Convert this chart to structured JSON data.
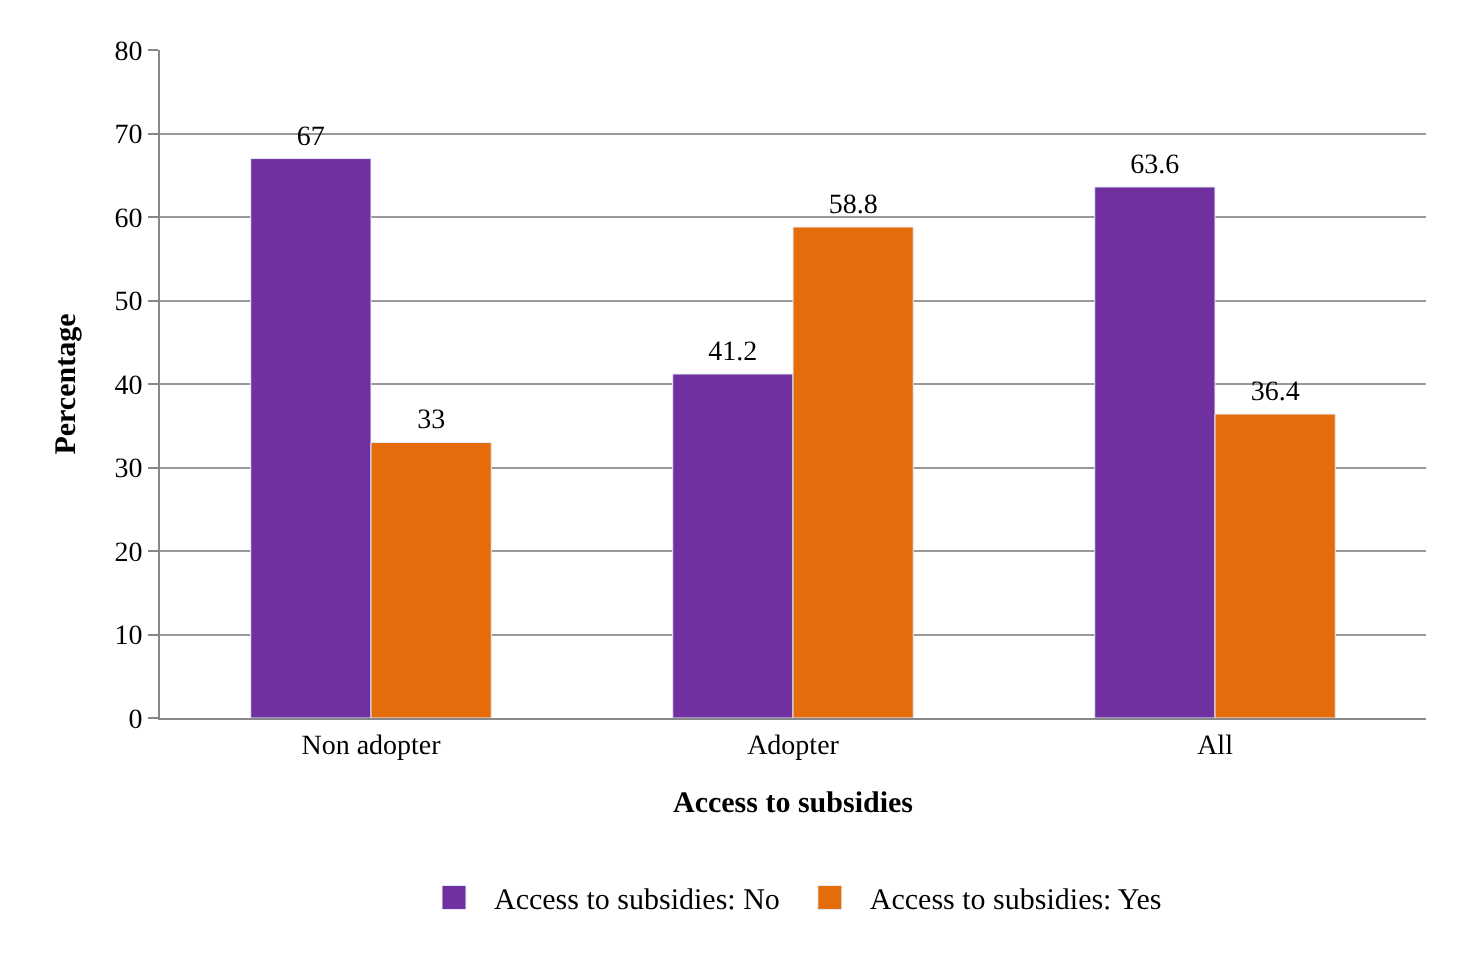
{
  "chart_data": {
    "type": "bar",
    "xlabel": "Access to subsidies",
    "ylabel": "Percentage",
    "categories": [
      "Non adopter",
      "Adopter",
      "All"
    ],
    "series": [
      {
        "name": "Access to subsidies: No",
        "color": "#7030a0",
        "values": [
          67,
          41.2,
          63.6
        ]
      },
      {
        "name": "Access to subsidies: Yes",
        "color": "#e46c0a",
        "values": [
          33,
          58.8,
          36.4
        ]
      }
    ],
    "ylim": [
      0,
      80
    ],
    "yticks": [
      0,
      10,
      20,
      30,
      40,
      50,
      60,
      70,
      80
    ],
    "grid": "y",
    "legend": "bottom",
    "data_labels": true
  }
}
